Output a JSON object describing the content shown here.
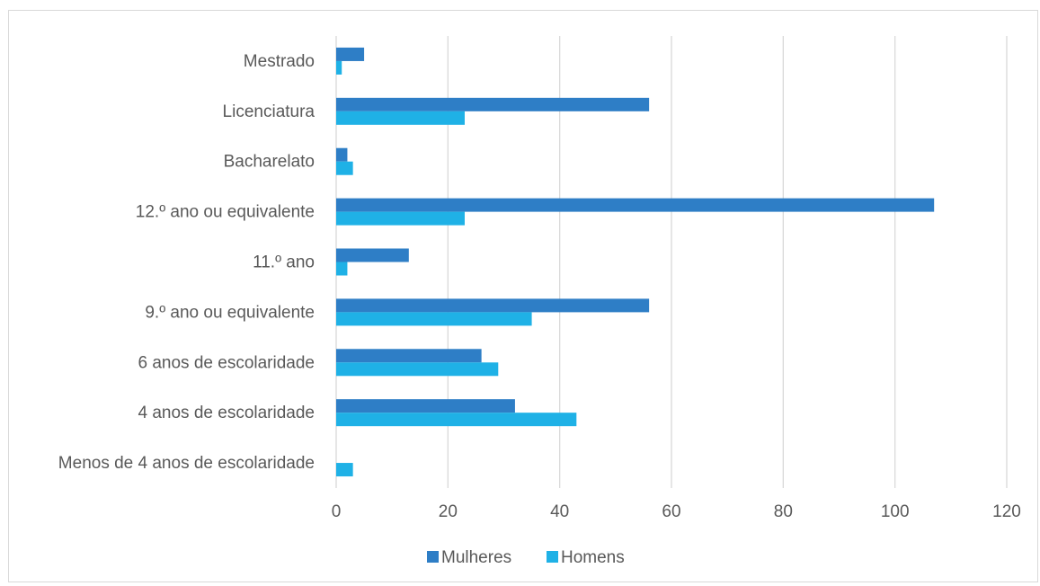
{
  "chart_data": {
    "type": "bar",
    "orientation": "horizontal",
    "categories": [
      "Menos de 4 anos de escolaridade",
      "4 anos de escolaridade",
      "6 anos de escolaridade",
      "9.º ano ou equivalente",
      "11.º ano",
      "12.º ano ou equivalente",
      "Bacharelato",
      "Licenciatura",
      "Mestrado"
    ],
    "series": [
      {
        "name": "Mulheres",
        "color": "#2e7ec6",
        "values": [
          0,
          32,
          26,
          56,
          13,
          107,
          2,
          56,
          5
        ]
      },
      {
        "name": "Homens",
        "color": "#1fb1e6",
        "values": [
          3,
          43,
          29,
          35,
          2,
          23,
          3,
          23,
          1
        ]
      }
    ],
    "xlim": [
      0,
      120
    ],
    "xticks": [
      0,
      20,
      40,
      60,
      80,
      100,
      120
    ],
    "grid": true,
    "legend_position": "bottom"
  }
}
